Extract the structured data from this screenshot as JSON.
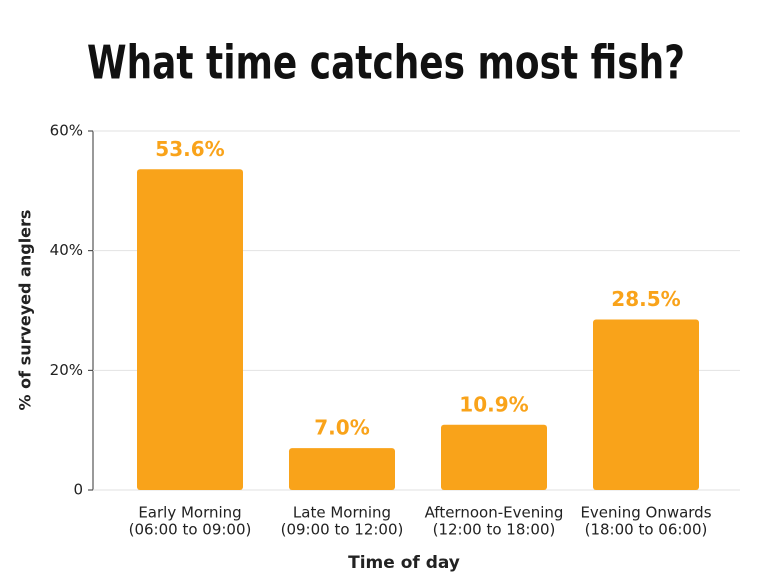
{
  "chart_data": {
    "type": "bar",
    "title": "What time catches most fish?",
    "x_label": "Time of day",
    "y_label": "% of surveyed anglers",
    "categories": [
      [
        "Early Morning",
        "(06:00 to 09:00)"
      ],
      [
        "Late Morning",
        "(09:00 to 12:00)"
      ],
      [
        "Afternoon-Evening",
        "(12:00 to 18:00)"
      ],
      [
        "Evening Onwards",
        "(18:00 to 06:00)"
      ]
    ],
    "values": [
      53.6,
      7.0,
      10.9,
      28.5
    ],
    "value_labels": [
      "53.6%",
      "7.0%",
      "10.9%",
      "28.5%"
    ],
    "color": "#f9a31a",
    "ylim": [
      0,
      60
    ],
    "yticks": [
      0,
      {
        "value": 20,
        "label": "20%"
      },
      {
        "value": 40,
        "label": "40%"
      },
      {
        "value": 60,
        "label": "60%"
      }
    ],
    "grid": true
  }
}
